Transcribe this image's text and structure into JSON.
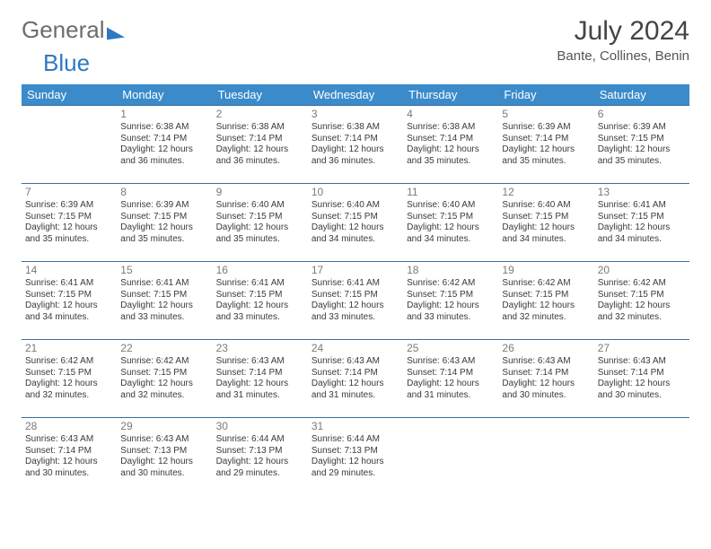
{
  "logo": {
    "part1": "General",
    "part2": "Blue"
  },
  "title": "July 2024",
  "subtitle": "Bante, Collines, Benin",
  "header_bg": "#3b8bca",
  "header_fg": "#ffffff",
  "rule_color": "#3b6fa0",
  "text_color": "#3a3a3a",
  "daynum_color": "#7a7a7a",
  "dow": [
    "Sunday",
    "Monday",
    "Tuesday",
    "Wednesday",
    "Thursday",
    "Friday",
    "Saturday"
  ],
  "weeks": [
    [
      null,
      {
        "n": "1",
        "sr": "6:38 AM",
        "ss": "7:14 PM",
        "dl": "12 hours and 36 minutes."
      },
      {
        "n": "2",
        "sr": "6:38 AM",
        "ss": "7:14 PM",
        "dl": "12 hours and 36 minutes."
      },
      {
        "n": "3",
        "sr": "6:38 AM",
        "ss": "7:14 PM",
        "dl": "12 hours and 36 minutes."
      },
      {
        "n": "4",
        "sr": "6:38 AM",
        "ss": "7:14 PM",
        "dl": "12 hours and 35 minutes."
      },
      {
        "n": "5",
        "sr": "6:39 AM",
        "ss": "7:14 PM",
        "dl": "12 hours and 35 minutes."
      },
      {
        "n": "6",
        "sr": "6:39 AM",
        "ss": "7:15 PM",
        "dl": "12 hours and 35 minutes."
      }
    ],
    [
      {
        "n": "7",
        "sr": "6:39 AM",
        "ss": "7:15 PM",
        "dl": "12 hours and 35 minutes."
      },
      {
        "n": "8",
        "sr": "6:39 AM",
        "ss": "7:15 PM",
        "dl": "12 hours and 35 minutes."
      },
      {
        "n": "9",
        "sr": "6:40 AM",
        "ss": "7:15 PM",
        "dl": "12 hours and 35 minutes."
      },
      {
        "n": "10",
        "sr": "6:40 AM",
        "ss": "7:15 PM",
        "dl": "12 hours and 34 minutes."
      },
      {
        "n": "11",
        "sr": "6:40 AM",
        "ss": "7:15 PM",
        "dl": "12 hours and 34 minutes."
      },
      {
        "n": "12",
        "sr": "6:40 AM",
        "ss": "7:15 PM",
        "dl": "12 hours and 34 minutes."
      },
      {
        "n": "13",
        "sr": "6:41 AM",
        "ss": "7:15 PM",
        "dl": "12 hours and 34 minutes."
      }
    ],
    [
      {
        "n": "14",
        "sr": "6:41 AM",
        "ss": "7:15 PM",
        "dl": "12 hours and 34 minutes."
      },
      {
        "n": "15",
        "sr": "6:41 AM",
        "ss": "7:15 PM",
        "dl": "12 hours and 33 minutes."
      },
      {
        "n": "16",
        "sr": "6:41 AM",
        "ss": "7:15 PM",
        "dl": "12 hours and 33 minutes."
      },
      {
        "n": "17",
        "sr": "6:41 AM",
        "ss": "7:15 PM",
        "dl": "12 hours and 33 minutes."
      },
      {
        "n": "18",
        "sr": "6:42 AM",
        "ss": "7:15 PM",
        "dl": "12 hours and 33 minutes."
      },
      {
        "n": "19",
        "sr": "6:42 AM",
        "ss": "7:15 PM",
        "dl": "12 hours and 32 minutes."
      },
      {
        "n": "20",
        "sr": "6:42 AM",
        "ss": "7:15 PM",
        "dl": "12 hours and 32 minutes."
      }
    ],
    [
      {
        "n": "21",
        "sr": "6:42 AM",
        "ss": "7:15 PM",
        "dl": "12 hours and 32 minutes."
      },
      {
        "n": "22",
        "sr": "6:42 AM",
        "ss": "7:15 PM",
        "dl": "12 hours and 32 minutes."
      },
      {
        "n": "23",
        "sr": "6:43 AM",
        "ss": "7:14 PM",
        "dl": "12 hours and 31 minutes."
      },
      {
        "n": "24",
        "sr": "6:43 AM",
        "ss": "7:14 PM",
        "dl": "12 hours and 31 minutes."
      },
      {
        "n": "25",
        "sr": "6:43 AM",
        "ss": "7:14 PM",
        "dl": "12 hours and 31 minutes."
      },
      {
        "n": "26",
        "sr": "6:43 AM",
        "ss": "7:14 PM",
        "dl": "12 hours and 30 minutes."
      },
      {
        "n": "27",
        "sr": "6:43 AM",
        "ss": "7:14 PM",
        "dl": "12 hours and 30 minutes."
      }
    ],
    [
      {
        "n": "28",
        "sr": "6:43 AM",
        "ss": "7:14 PM",
        "dl": "12 hours and 30 minutes."
      },
      {
        "n": "29",
        "sr": "6:43 AM",
        "ss": "7:13 PM",
        "dl": "12 hours and 30 minutes."
      },
      {
        "n": "30",
        "sr": "6:44 AM",
        "ss": "7:13 PM",
        "dl": "12 hours and 29 minutes."
      },
      {
        "n": "31",
        "sr": "6:44 AM",
        "ss": "7:13 PM",
        "dl": "12 hours and 29 minutes."
      },
      null,
      null,
      null
    ]
  ],
  "labels": {
    "sunrise": "Sunrise: ",
    "sunset": "Sunset: ",
    "daylight": "Daylight: "
  }
}
